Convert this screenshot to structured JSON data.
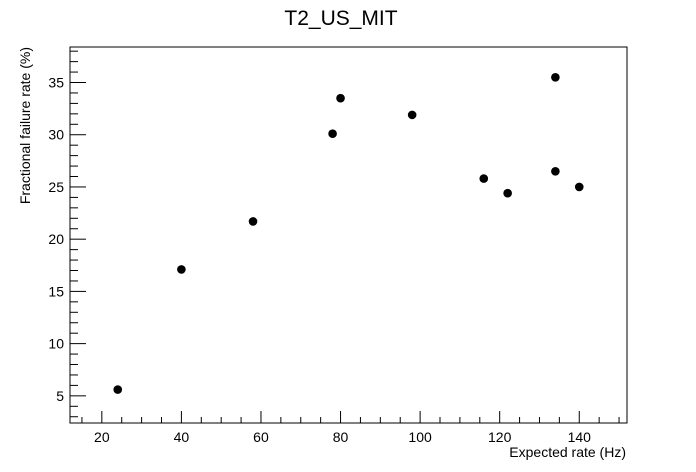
{
  "chart_data": {
    "type": "scatter",
    "title": "T2_US_MIT",
    "xlabel": "Expected rate (Hz)",
    "ylabel": "Fractional failure rate (%)",
    "xlim": [
      12,
      152
    ],
    "ylim": [
      2.4,
      38.4
    ],
    "x_ticks": [
      20,
      40,
      60,
      80,
      100,
      120,
      140
    ],
    "y_ticks": [
      5,
      10,
      15,
      20,
      25,
      30,
      35
    ],
    "marker_color": "#000000",
    "grid": false,
    "points": [
      {
        "x": 24,
        "y": 5.6
      },
      {
        "x": 40,
        "y": 17.1
      },
      {
        "x": 58,
        "y": 21.7
      },
      {
        "x": 78,
        "y": 30.1
      },
      {
        "x": 80,
        "y": 33.5
      },
      {
        "x": 98,
        "y": 31.9
      },
      {
        "x": 116,
        "y": 25.8
      },
      {
        "x": 122,
        "y": 24.4
      },
      {
        "x": 134,
        "y": 35.5
      },
      {
        "x": 134,
        "y": 26.5
      },
      {
        "x": 140,
        "y": 25.0
      }
    ]
  }
}
